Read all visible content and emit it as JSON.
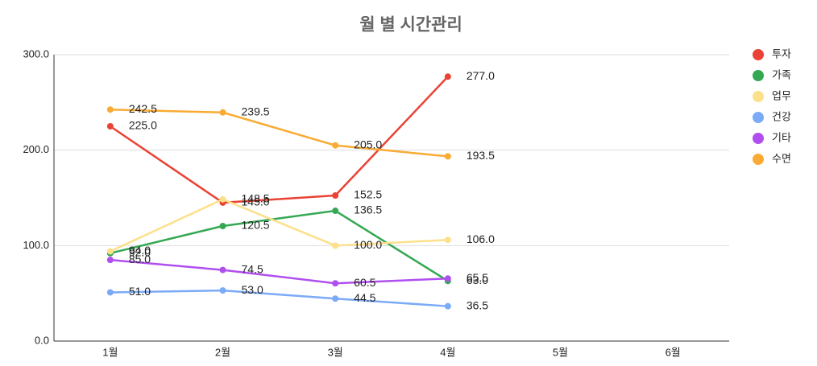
{
  "chart_data": {
    "type": "line",
    "title": "월 별 시간관리",
    "categories": [
      "1월",
      "2월",
      "3월",
      "4월",
      "5월",
      "6월"
    ],
    "series": [
      {
        "name": "투자",
        "color": "#ea4335",
        "values": [
          225,
          145,
          152.5,
          277,
          null,
          null
        ],
        "value_labels": [
          "225.0",
          "145.0",
          "152.5",
          "277.0",
          null,
          null
        ]
      },
      {
        "name": "가족",
        "color": "#34a853",
        "values": [
          92,
          120.5,
          136.5,
          63,
          null,
          null
        ],
        "value_labels": [
          "92.0",
          "120.5",
          "136.5",
          "63.0",
          null,
          null
        ]
      },
      {
        "name": "업무",
        "color": "#fce08a",
        "values": [
          94,
          148.5,
          100,
          106,
          null,
          null
        ],
        "value_labels": [
          "94.0",
          "148.5",
          "100.0",
          "106.0",
          null,
          null
        ]
      },
      {
        "name": "건강",
        "color": "#7baaf7",
        "values": [
          51,
          53,
          44.5,
          36.5,
          null,
          null
        ],
        "value_labels": [
          "51.0",
          "53.0",
          "44.5",
          "36.5",
          null,
          null
        ]
      },
      {
        "name": "기타",
        "color": "#b04ff0",
        "values": [
          85,
          74.5,
          60.5,
          65.5,
          null,
          null
        ],
        "value_labels": [
          "85.0",
          "74.5",
          "60.5",
          "65.5",
          null,
          null
        ]
      },
      {
        "name": "수면",
        "color": "#f9ab34",
        "values": [
          242.5,
          239.5,
          205,
          193.5,
          null,
          null
        ],
        "value_labels": [
          "242.5",
          "239.5",
          "205.0",
          "193.5",
          null,
          null
        ]
      }
    ],
    "ylim": [
      0,
      300
    ],
    "yticks": [
      {
        "value": 0,
        "label": "0.0"
      },
      {
        "value": 100,
        "label": "100.0"
      },
      {
        "value": 200,
        "label": "200.0"
      },
      {
        "value": 300,
        "label": "300.0"
      }
    ],
    "grid": true,
    "legend": "right"
  }
}
